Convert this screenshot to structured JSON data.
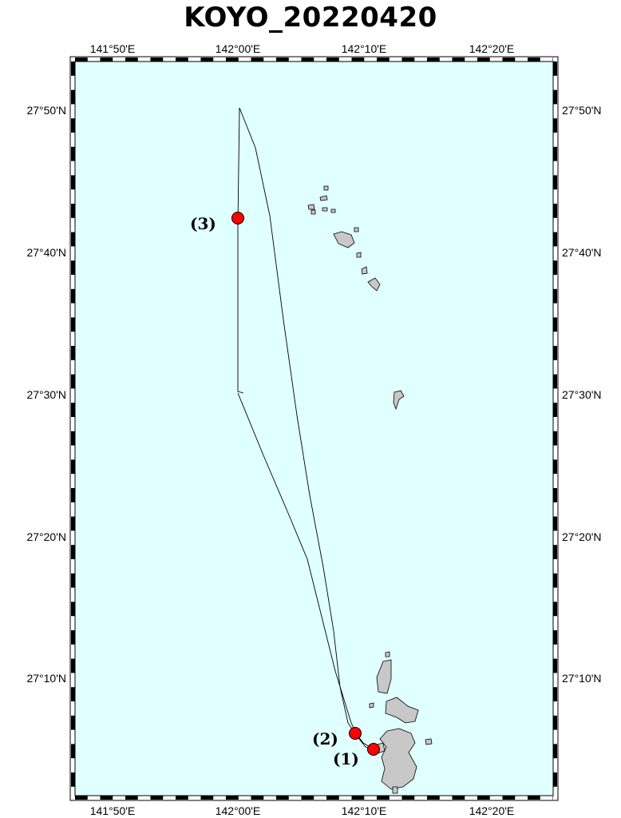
{
  "title": "KOYO_20220420",
  "colors": {
    "sea": "#e0ffff",
    "land": "#c8c8c8",
    "track": "#000000",
    "station": "#ff0000"
  },
  "lon_labels": [
    "141°50'E",
    "142°00'E",
    "142°10'E",
    "142°20'E"
  ],
  "lat_labels": [
    "27°50'N",
    "27°40'N",
    "27°30'N",
    "27°20'N",
    "27°10'N"
  ],
  "stations": [
    {
      "label": "(1)"
    },
    {
      "label": "(2)"
    },
    {
      "label": "(3)"
    }
  ]
}
